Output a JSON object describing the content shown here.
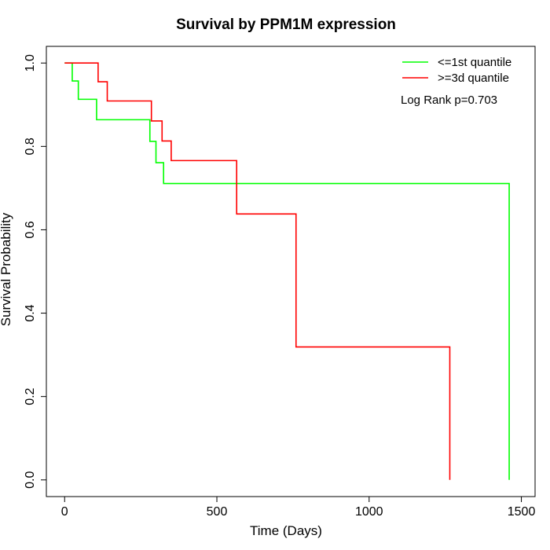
{
  "chart_data": {
    "type": "line",
    "title": "Survival by PPM1M expression",
    "xlabel": "Time (Days)",
    "ylabel": "Survival Probability",
    "xlim": [
      -60,
      1545
    ],
    "ylim": [
      -0.04,
      1.04
    ],
    "x_ticks": [
      0,
      500,
      1000,
      1500
    ],
    "x_tick_labels": [
      "0",
      "500",
      "1000",
      "1500"
    ],
    "y_ticks": [
      0.0,
      0.2,
      0.4,
      0.6,
      0.8,
      1.0
    ],
    "y_tick_labels": [
      "0.0",
      "0.2",
      "0.4",
      "0.6",
      "0.8",
      "1.0"
    ],
    "grid": false,
    "legend_position": "top-right",
    "annotation": "Log Rank p=0.703",
    "series": [
      {
        "name": "<=1st quantile",
        "color": "#00ff00",
        "step": true,
        "points": [
          [
            0,
            1.0
          ],
          [
            25,
            1.0
          ],
          [
            25,
            0.957
          ],
          [
            45,
            0.957
          ],
          [
            45,
            0.913
          ],
          [
            105,
            0.913
          ],
          [
            105,
            0.864
          ],
          [
            280,
            0.864
          ],
          [
            280,
            0.812
          ],
          [
            300,
            0.812
          ],
          [
            300,
            0.761
          ],
          [
            325,
            0.761
          ],
          [
            325,
            0.711
          ],
          [
            1460,
            0.711
          ],
          [
            1460,
            0.0
          ]
        ]
      },
      {
        "name": ">=3d quantile",
        "color": "#ff0000",
        "step": true,
        "points": [
          [
            0,
            1.0
          ],
          [
            110,
            1.0
          ],
          [
            110,
            0.955
          ],
          [
            140,
            0.955
          ],
          [
            140,
            0.909
          ],
          [
            285,
            0.909
          ],
          [
            285,
            0.861
          ],
          [
            320,
            0.861
          ],
          [
            320,
            0.813
          ],
          [
            350,
            0.813
          ],
          [
            350,
            0.766
          ],
          [
            565,
            0.766
          ],
          [
            565,
            0.638
          ],
          [
            760,
            0.638
          ],
          [
            760,
            0.319
          ],
          [
            1265,
            0.319
          ],
          [
            1265,
            0.0
          ]
        ]
      }
    ]
  }
}
